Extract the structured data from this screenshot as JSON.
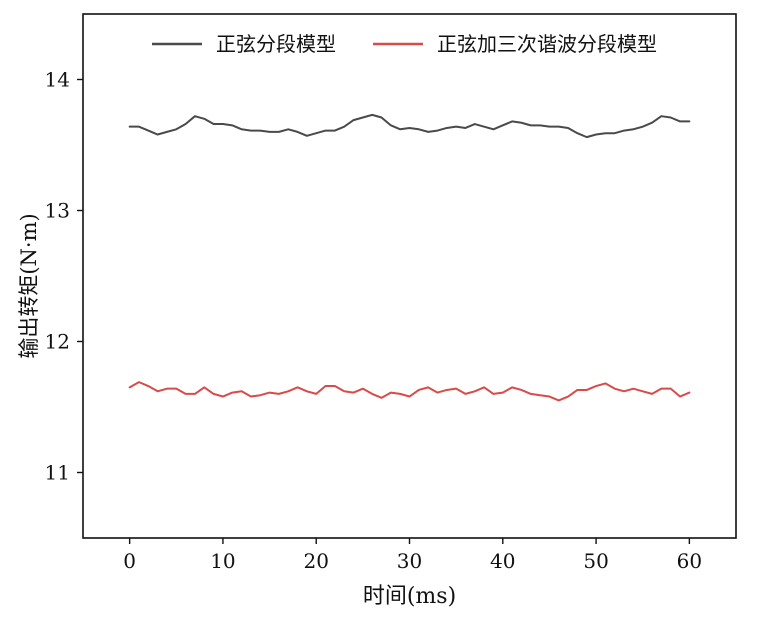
{
  "chart_data": {
    "type": "line",
    "title": "",
    "xlabel": "时间(ms)",
    "ylabel": "输出转矩(N·m)",
    "xlim": [
      -5,
      65
    ],
    "ylim": [
      10.5,
      14.5
    ],
    "xticks": [
      0,
      10,
      20,
      30,
      40,
      50,
      60
    ],
    "yticks": [
      11,
      12,
      13,
      14
    ],
    "grid": false,
    "legend_position": "top",
    "series": [
      {
        "name": "正弦分段模型",
        "color": "#4a4a4a",
        "x": [
          0,
          1,
          2,
          3,
          4,
          5,
          6,
          7,
          8,
          9,
          10,
          11,
          12,
          13,
          14,
          15,
          16,
          17,
          18,
          19,
          20,
          21,
          22,
          23,
          24,
          25,
          26,
          27,
          28,
          29,
          30,
          31,
          32,
          33,
          34,
          35,
          36,
          37,
          38,
          39,
          40,
          41,
          42,
          43,
          44,
          45,
          46,
          47,
          48,
          49,
          50,
          51,
          52,
          53,
          54,
          55,
          56,
          57,
          58,
          59,
          60
        ],
        "values": [
          13.64,
          13.64,
          13.61,
          13.58,
          13.6,
          13.62,
          13.66,
          13.72,
          13.7,
          13.66,
          13.66,
          13.65,
          13.62,
          13.61,
          13.61,
          13.6,
          13.6,
          13.62,
          13.6,
          13.57,
          13.59,
          13.61,
          13.61,
          13.64,
          13.69,
          13.71,
          13.73,
          13.71,
          13.65,
          13.62,
          13.63,
          13.62,
          13.6,
          13.61,
          13.63,
          13.64,
          13.63,
          13.66,
          13.64,
          13.62,
          13.65,
          13.68,
          13.67,
          13.65,
          13.65,
          13.64,
          13.64,
          13.63,
          13.59,
          13.56,
          13.58,
          13.59,
          13.59,
          13.61,
          13.62,
          13.64,
          13.67,
          13.72,
          13.71,
          13.68,
          13.68
        ]
      },
      {
        "name": "正弦加三次谐波分段模型",
        "color": "#d94a4a",
        "x": [
          0,
          1,
          2,
          3,
          4,
          5,
          6,
          7,
          8,
          9,
          10,
          11,
          12,
          13,
          14,
          15,
          16,
          17,
          18,
          19,
          20,
          21,
          22,
          23,
          24,
          25,
          26,
          27,
          28,
          29,
          30,
          31,
          32,
          33,
          34,
          35,
          36,
          37,
          38,
          39,
          40,
          41,
          42,
          43,
          44,
          45,
          46,
          47,
          48,
          49,
          50,
          51,
          52,
          53,
          54,
          55,
          56,
          57,
          58,
          59,
          60
        ],
        "values": [
          11.65,
          11.69,
          11.66,
          11.62,
          11.64,
          11.64,
          11.6,
          11.6,
          11.65,
          11.6,
          11.58,
          11.61,
          11.62,
          11.58,
          11.59,
          11.61,
          11.6,
          11.62,
          11.65,
          11.62,
          11.6,
          11.66,
          11.66,
          11.62,
          11.61,
          11.64,
          11.6,
          11.57,
          11.61,
          11.6,
          11.58,
          11.63,
          11.65,
          11.61,
          11.63,
          11.64,
          11.6,
          11.62,
          11.65,
          11.6,
          11.61,
          11.65,
          11.63,
          11.6,
          11.59,
          11.58,
          11.55,
          11.58,
          11.63,
          11.63,
          11.66,
          11.68,
          11.64,
          11.62,
          11.64,
          11.62,
          11.6,
          11.64,
          11.64,
          11.58,
          11.61
        ]
      }
    ]
  }
}
